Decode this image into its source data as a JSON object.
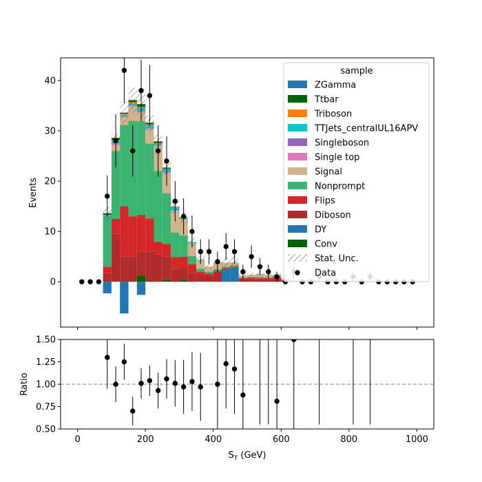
{
  "chart_data": [
    {
      "type": "bar",
      "stacked": true,
      "xlabel": "S_T (GeV)",
      "ylabel": "Events",
      "xlim": [
        -50,
        1050
      ],
      "ylim": [
        -9,
        44.5
      ],
      "xticks": [
        0,
        200,
        400,
        600,
        800,
        1000
      ],
      "yticks": [
        0,
        10,
        20,
        30,
        40
      ],
      "bin_edges": [
        0,
        25,
        50,
        75,
        100,
        125,
        150,
        175,
        200,
        225,
        250,
        275,
        300,
        325,
        350,
        375,
        400,
        425,
        450,
        475,
        500,
        525,
        550,
        575,
        600,
        625,
        650,
        675,
        700,
        725,
        750,
        775,
        800,
        825,
        850,
        875,
        900,
        925,
        950,
        975,
        1000
      ],
      "legend": {
        "title": "sample",
        "placement": "upper right",
        "entries": [
          "ZGamma",
          "Ttbar",
          "Triboson",
          "TTJets_centralUL16APV",
          "Singleboson",
          "Single top",
          "Signal",
          "Nonprompt",
          "Flips",
          "Diboson",
          "DY",
          "Conv",
          "Stat. Unc.",
          "Data"
        ]
      },
      "series": [
        {
          "name": "DY",
          "color": "#1f77b4",
          "values": [
            0,
            0,
            0,
            -2.3,
            0,
            -6.3,
            0,
            -2.6,
            0,
            0,
            0,
            0,
            0,
            0,
            0,
            0,
            0,
            2.5,
            2.8,
            0,
            0,
            0,
            0,
            0,
            0,
            0,
            0,
            0,
            0,
            0,
            0,
            0,
            0,
            0,
            0,
            0,
            0,
            0,
            0,
            0
          ]
        },
        {
          "name": "Conv",
          "color": "#006400",
          "values": [
            0,
            0,
            0,
            0,
            0,
            0,
            0,
            1.2,
            0,
            0,
            0.4,
            0,
            0.4,
            0,
            0,
            0,
            0,
            0,
            0,
            0,
            0,
            0,
            0,
            0,
            0,
            0,
            0,
            0,
            0,
            0,
            0,
            0,
            0,
            0,
            0,
            0,
            0,
            0,
            0,
            0
          ]
        },
        {
          "name": "Diboson",
          "color": "#b22b2b",
          "values": [
            0,
            0,
            0,
            1.7,
            9.5,
            5.0,
            5.0,
            4.8,
            6.0,
            5.4,
            4.6,
            2.6,
            2.3,
            1.7,
            1.4,
            1.2,
            2.0,
            0,
            0,
            0.6,
            0.5,
            0.5,
            0.5,
            0.6,
            0.3,
            0.2,
            0.2,
            0.3,
            0.2,
            0.2,
            0.2,
            0.2,
            0.1,
            0.2,
            0.1,
            0.2,
            0.1,
            0.1,
            0.1,
            0.1
          ]
        },
        {
          "name": "Flips",
          "color": "#d62728",
          "values": [
            0,
            0,
            0,
            1.3,
            3.0,
            10.0,
            8.0,
            7.3,
            6.6,
            2.5,
            2.5,
            2.3,
            2.3,
            1.8,
            0.6,
            0.4,
            0.2,
            0.2,
            0.2,
            0.1,
            0.3,
            0.2,
            0.2,
            0.3,
            0,
            0,
            0,
            0,
            0,
            0,
            0,
            0,
            0,
            0,
            0,
            0,
            0,
            0,
            0,
            0
          ]
        },
        {
          "name": "Nonprompt",
          "color": "#3cb371",
          "values": [
            0,
            0,
            0,
            9.8,
            13.5,
            16.2,
            19.0,
            18.6,
            14.9,
            14.1,
            10.1,
            4.9,
            4.2,
            1.6,
            0.6,
            0.4,
            0.3,
            0.3,
            0.3,
            0.2,
            0.2,
            0.3,
            0.2,
            0.2,
            0,
            0,
            0,
            0,
            0,
            0,
            0,
            0,
            0,
            0,
            0,
            0,
            0,
            0,
            0,
            0
          ]
        },
        {
          "name": "Signal",
          "color": "#d2b48c",
          "values": [
            0,
            0,
            0,
            0,
            1.2,
            1.5,
            2.9,
            1.8,
            2.8,
            5.0,
            4.0,
            4.3,
            3.2,
            2.6,
            1.7,
            1.0,
            1.4,
            0.8,
            0.6,
            0.3,
            0.4,
            0.5,
            0.5,
            0.2,
            0.2,
            0.1,
            0.1,
            0.1,
            0,
            0,
            0,
            0,
            0,
            0,
            0,
            0,
            0,
            0,
            0,
            0
          ]
        },
        {
          "name": "Singleboson",
          "color": "#9467bd",
          "values": [
            0,
            0,
            0,
            0.1,
            0.1,
            0.1,
            0.1,
            0.1,
            0.1,
            0.1,
            0.1,
            0,
            0,
            0,
            0,
            0,
            0,
            0,
            0,
            0,
            0,
            0,
            0,
            0,
            0,
            0,
            0,
            0,
            0,
            0,
            0,
            0,
            0,
            0,
            0,
            0,
            0,
            0,
            0,
            0
          ]
        },
        {
          "name": "Single top",
          "color": "#e377c2",
          "values": [
            0,
            0,
            0,
            0,
            0.1,
            0.1,
            0.1,
            0.1,
            0.1,
            0.1,
            0.1,
            0,
            0,
            0,
            0,
            0,
            0,
            0,
            0,
            0,
            0,
            0,
            0,
            0,
            0,
            0,
            0,
            0,
            0,
            0,
            0,
            0,
            0,
            0,
            0,
            0,
            0,
            0,
            0,
            0
          ]
        },
        {
          "name": "TTJets_centralUL16APV",
          "color": "#17becf",
          "values": [
            0,
            0,
            0,
            0.3,
            0.6,
            0.3,
            0.3,
            0.6,
            0.6,
            0.2,
            0.6,
            0.6,
            0.2,
            0.2,
            0.1,
            0,
            0,
            0,
            0,
            0,
            0,
            0,
            0,
            0,
            0,
            0,
            0,
            0,
            0,
            0,
            0,
            0,
            0,
            0,
            0,
            0,
            0,
            0,
            0,
            0
          ]
        },
        {
          "name": "Triboson",
          "color": "#ff7f0e",
          "values": [
            0,
            0,
            0,
            0.1,
            0.2,
            0.2,
            0.3,
            0.3,
            0.2,
            0.2,
            0.1,
            0.1,
            0,
            0,
            0,
            0,
            0,
            0,
            0,
            0,
            0,
            0,
            0,
            0,
            0,
            0,
            0,
            0,
            0,
            0,
            0,
            0,
            0,
            0,
            0,
            0,
            0,
            0,
            0,
            0
          ]
        },
        {
          "name": "Ttbar",
          "color": "#006400",
          "values": [
            0,
            0,
            0,
            0.3,
            0.4,
            0.2,
            0.4,
            0.5,
            0.3,
            0.3,
            0.2,
            0.1,
            0.1,
            0,
            0,
            0,
            0,
            0,
            0,
            0,
            0,
            0,
            0,
            0,
            0,
            0,
            0,
            0,
            0,
            0,
            0,
            0,
            0,
            0,
            0,
            0,
            0,
            0,
            0,
            0
          ]
        },
        {
          "name": "ZGamma",
          "color": "#1f77b4",
          "values": [
            0,
            0,
            0,
            0,
            0,
            0,
            0,
            0,
            0,
            0,
            0,
            0,
            0,
            0,
            0,
            0,
            0,
            0,
            0,
            0,
            0,
            0,
            0,
            0,
            0,
            0,
            0,
            0,
            0,
            0,
            0,
            0,
            0,
            0,
            0,
            0,
            0,
            0,
            0,
            0
          ]
        }
      ],
      "stat_unc": [
        0,
        0,
        0,
        1.3,
        0.9,
        2.2,
        2.5,
        2.9,
        1.6,
        1.5,
        1.4,
        1.3,
        1.0,
        0.8,
        0.6,
        0.5,
        0.5,
        1.0,
        1.2,
        0.4,
        0.3,
        0.3,
        0.3,
        0.3,
        0.2,
        0.2,
        0.2,
        0.2,
        0.2,
        0.2,
        0.2,
        0.2,
        0.2,
        0.2,
        0.2,
        0.2,
        0.2,
        0.2,
        0.2,
        0.2
      ],
      "data": {
        "x": [
          12.5,
          37.5,
          62.5,
          87.5,
          112.5,
          137.5,
          162.5,
          187.5,
          212.5,
          237.5,
          262.5,
          287.5,
          312.5,
          337.5,
          362.5,
          387.5,
          412.5,
          437.5,
          462.5,
          487.5,
          512.5,
          537.5,
          562.5,
          587.5,
          612.5,
          637.5,
          662.5,
          687.5,
          712.5,
          737.5,
          762.5,
          787.5,
          812.5,
          837.5,
          862.5,
          887.5,
          912.5,
          937.5,
          962.5,
          987.5
        ],
        "y": [
          0,
          0,
          0,
          17,
          28,
          42,
          26,
          38,
          37,
          26,
          24,
          16,
          13,
          10,
          6,
          6,
          4,
          7,
          6,
          2,
          5,
          3,
          2,
          1,
          0,
          2,
          0,
          0,
          1,
          0,
          0,
          0,
          1,
          0,
          1,
          0,
          0,
          0,
          0,
          0
        ]
      }
    },
    {
      "type": "scatter",
      "xlabel": "S_T (GeV)",
      "ylabel": "Ratio",
      "xlim": [
        -50,
        1050
      ],
      "ylim": [
        0.5,
        1.5
      ],
      "xticks": [
        0,
        200,
        400,
        600,
        800,
        1000
      ],
      "yticks": [
        0.5,
        0.75,
        1.0,
        1.25,
        1.5
      ],
      "reference_line": 1.0,
      "points": {
        "x": [
          87.5,
          112.5,
          137.5,
          162.5,
          187.5,
          212.5,
          237.5,
          262.5,
          287.5,
          312.5,
          337.5,
          362.5,
          412.5,
          437.5,
          462.5,
          487.5,
          587.5,
          637.5
        ],
        "y": [
          1.3,
          1.0,
          1.25,
          0.7,
          1.01,
          1.04,
          0.93,
          1.06,
          1.01,
          0.97,
          1.03,
          0.97,
          1.0,
          1.23,
          1.17,
          0.88,
          0.81,
          1.5
        ],
        "err": [
          0.35,
          0.2,
          0.2,
          0.16,
          0.17,
          0.17,
          0.2,
          0.22,
          0.26,
          0.3,
          0.33,
          0.38,
          0.5,
          0.5,
          0.5,
          0.7,
          0.8,
          1.0
        ]
      },
      "errorbar_only_x": [
        537.5,
        562.5,
        712.5,
        812.5,
        862.5
      ]
    }
  ]
}
